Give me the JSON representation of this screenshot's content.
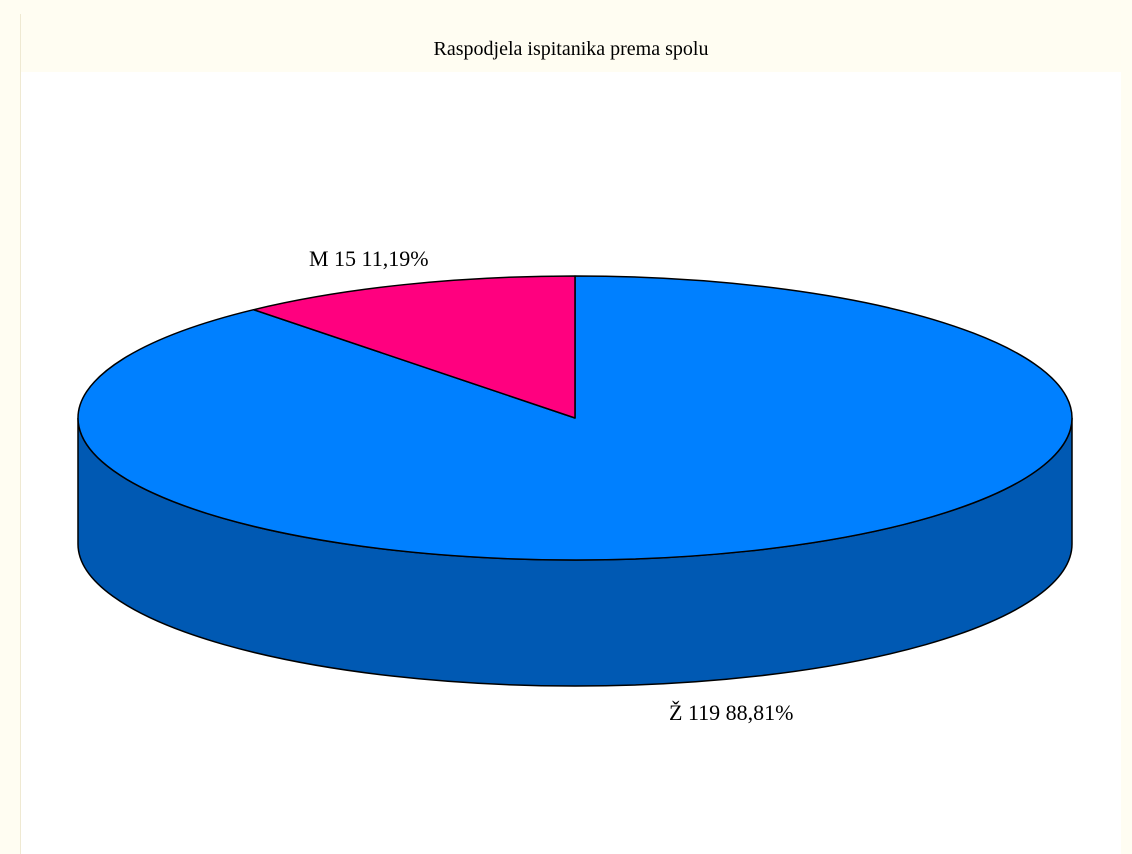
{
  "chart_data": {
    "type": "pie",
    "title": "Raspodjela ispitanika prema spolu",
    "style": "3d",
    "slices": [
      {
        "category": "Ž",
        "count": 119,
        "percent": "88,81%",
        "color": "#0080ff",
        "side_color": "#0059b3"
      },
      {
        "category": "M",
        "count": 15,
        "percent": "11,19%",
        "color": "#ff007f",
        "side_color": "#b3005a"
      }
    ]
  }
}
